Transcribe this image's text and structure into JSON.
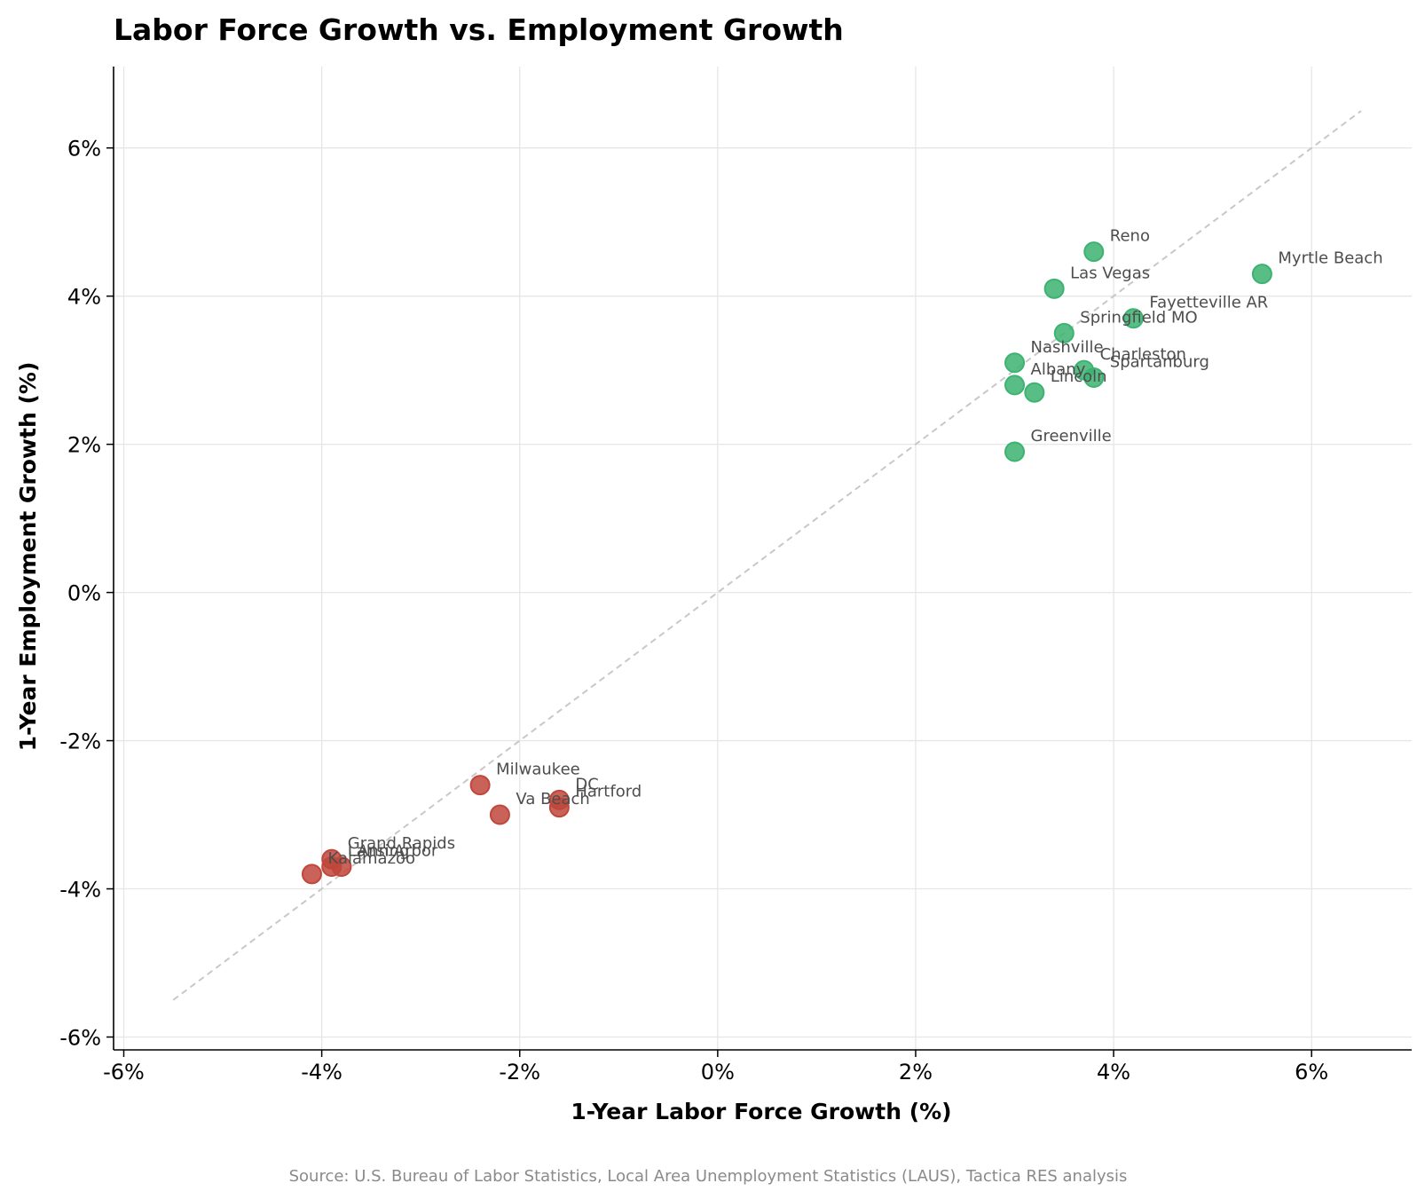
{
  "chart_data": {
    "type": "scatter",
    "title": "Labor Force Growth vs. Employment Growth",
    "xlabel": "1-Year Labor Force Growth (%)",
    "ylabel": "1-Year Employment Growth (%)",
    "xlim": [
      -6.1,
      7.1
    ],
    "ylim": [
      -6.1,
      7.1
    ],
    "xticks": [
      -6,
      -4,
      -2,
      0,
      2,
      4,
      6
    ],
    "yticks": [
      -6,
      -4,
      -2,
      0,
      2,
      4,
      6
    ],
    "xtick_labels": [
      "-6%",
      "-4%",
      "-2%",
      "0%",
      "2%",
      "4%",
      "6%"
    ],
    "ytick_labels": [
      "-6%",
      "-4%",
      "-2%",
      "0%",
      "2%",
      "4%",
      "6%"
    ],
    "grid": true,
    "reference_line": {
      "style": "dashed",
      "from": [
        -5.5,
        -5.5
      ],
      "to": [
        6.5,
        6.5
      ],
      "color": "#c8c8c8"
    },
    "colors": {
      "positive": "#3cb371",
      "negative": "#c0473b"
    },
    "points": [
      {
        "label": "Reno",
        "x": 3.8,
        "y": 4.6,
        "group": "positive"
      },
      {
        "label": "Myrtle Beach",
        "x": 5.5,
        "y": 4.3,
        "group": "positive"
      },
      {
        "label": "Las Vegas",
        "x": 3.4,
        "y": 4.1,
        "group": "positive"
      },
      {
        "label": "Fayetteville AR",
        "x": 4.2,
        "y": 3.7,
        "group": "positive"
      },
      {
        "label": "Springfield MO",
        "x": 3.5,
        "y": 3.5,
        "group": "positive"
      },
      {
        "label": "Nashville",
        "x": 3.0,
        "y": 3.1,
        "group": "positive"
      },
      {
        "label": "Charleston",
        "x": 3.7,
        "y": 3.0,
        "group": "positive"
      },
      {
        "label": "Spartanburg",
        "x": 3.8,
        "y": 2.9,
        "group": "positive"
      },
      {
        "label": "Albany",
        "x": 3.0,
        "y": 2.8,
        "group": "positive"
      },
      {
        "label": "Lincoln",
        "x": 3.2,
        "y": 2.7,
        "group": "positive"
      },
      {
        "label": "Greenville",
        "x": 3.0,
        "y": 1.9,
        "group": "positive"
      },
      {
        "label": "Milwaukee",
        "x": -2.4,
        "y": -2.6,
        "group": "negative"
      },
      {
        "label": "DC",
        "x": -1.6,
        "y": -2.8,
        "group": "negative"
      },
      {
        "label": "Hartford",
        "x": -1.6,
        "y": -2.9,
        "group": "negative"
      },
      {
        "label": "Va Beach",
        "x": -2.2,
        "y": -3.0,
        "group": "negative"
      },
      {
        "label": "Grand Rapids",
        "x": -3.9,
        "y": -3.6,
        "group": "negative"
      },
      {
        "label": "Ann Arbor",
        "x": -3.8,
        "y": -3.7,
        "group": "negative"
      },
      {
        "label": "Lansing",
        "x": -3.9,
        "y": -3.7,
        "group": "negative"
      },
      {
        "label": "Kalamazoo",
        "x": -4.1,
        "y": -3.8,
        "group": "negative"
      }
    ],
    "source": "Source: U.S. Bureau of Labor Statistics, Local Area Unemployment Statistics (LAUS), Tactica RES analysis"
  }
}
